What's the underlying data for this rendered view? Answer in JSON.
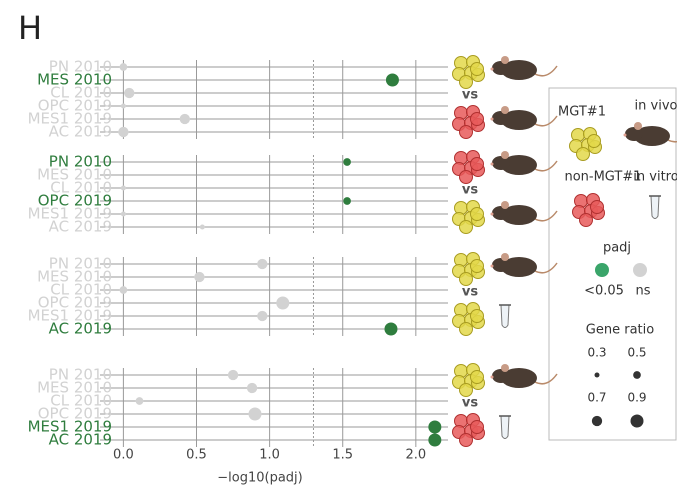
{
  "chart_data": {
    "type": "dot",
    "panel_label": "H",
    "xlabel": "−log10(padj)",
    "xlim": [
      -0.16,
      2.22
    ],
    "xticks": [
      {
        "value": 0,
        "label": "0.0"
      },
      {
        "value": 0.5,
        "label": "0.5"
      },
      {
        "value": 1,
        "label": "1.0"
      },
      {
        "value": 1.5,
        "label": "1.5"
      },
      {
        "value": 2,
        "label": "2.0"
      }
    ],
    "threshold": 1.3,
    "grid": true,
    "categories": [
      "PN 2010",
      "MES 2010",
      "CL 2010",
      "OPC 2019",
      "MES1 2019",
      "AC 2019"
    ],
    "colors": {
      "significant": "#2f7d3e",
      "ns": "#d2d2d2"
    },
    "vs_label": "vs",
    "panels": [
      {
        "values": [
          0,
          1.84,
          0.04,
          0,
          0.42,
          0
        ],
        "sizes": [
          0.5,
          0.9,
          0.7,
          0.3,
          0.7,
          0.7
        ],
        "significant": [
          false,
          true,
          false,
          false,
          false,
          false
        ]
      },
      {
        "values": [
          1.53,
          null,
          0,
          1.53,
          0,
          0.54
        ],
        "sizes": [
          0.5,
          null,
          0.3,
          0.5,
          0.3,
          0.3
        ],
        "significant": [
          true,
          false,
          false,
          true,
          false,
          false
        ]
      },
      {
        "values": [
          0.95,
          0.52,
          0,
          1.09,
          0.95,
          1.83
        ],
        "sizes": [
          0.7,
          0.7,
          0.5,
          0.9,
          0.7,
          0.9
        ],
        "significant": [
          false,
          false,
          false,
          false,
          false,
          true
        ]
      },
      {
        "values": [
          0.75,
          0.88,
          0.11,
          0.9,
          2.13,
          2.13
        ],
        "sizes": [
          0.7,
          0.7,
          0.5,
          0.9,
          0.9,
          0.9
        ],
        "significant": [
          false,
          false,
          false,
          false,
          true,
          true
        ]
      }
    ],
    "legend": {
      "group_labels": [
        "MGT#1",
        "non-MGT#1"
      ],
      "condition_labels": [
        "in vivo",
        "in vitro"
      ],
      "color_title": "padj",
      "color_labels": [
        "<0.05",
        "ns"
      ],
      "size_title": "Gene ratio",
      "size_values": [
        0.3,
        0.5,
        0.7,
        0.9
      ]
    }
  }
}
